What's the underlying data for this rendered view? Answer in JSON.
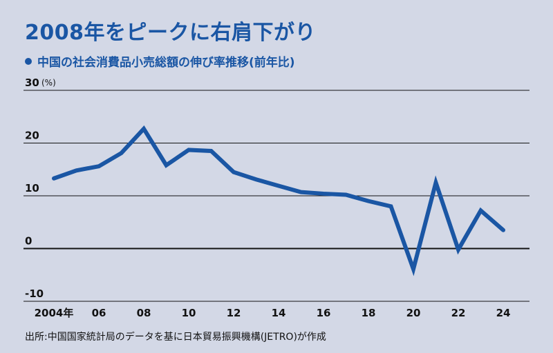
{
  "title": "2008年をピークに右肩下がり",
  "subtitle": "中国の社会消費品小売総額の伸び率推移(前年比)",
  "source": "出所:中国国家統計局のデータを基に日本貿易振興機構(JETRO)が作成",
  "colors": {
    "line": "#1a56a4",
    "title": "#1a56a4",
    "background": "#d3d8e6",
    "grid": "#111111"
  },
  "chart_data": {
    "type": "line",
    "unit": "(%)",
    "ylim": [
      -10,
      30
    ],
    "yticks": [
      30,
      20,
      10,
      0,
      -10
    ],
    "ytick_labels": [
      "30",
      "20",
      "10",
      "0",
      "-10"
    ],
    "grid": true,
    "xticks": [
      2004,
      2006,
      2008,
      2010,
      2012,
      2014,
      2016,
      2018,
      2020,
      2022,
      2024
    ],
    "xtick_labels": [
      "2004年",
      "06",
      "08",
      "10",
      "12",
      "14",
      "16",
      "18",
      "20",
      "22",
      "24"
    ],
    "x": [
      2004,
      2005,
      2006,
      2007,
      2008,
      2009,
      2010,
      2011,
      2012,
      2013,
      2014,
      2015,
      2016,
      2017,
      2018,
      2019,
      2020,
      2021,
      2022,
      2023,
      2024
    ],
    "series": [
      {
        "values": [
          13.3,
          14.8,
          15.6,
          18.1,
          22.7,
          15.8,
          18.7,
          18.5,
          14.5,
          13.1,
          11.9,
          10.7,
          10.4,
          10.2,
          9.0,
          8.0,
          -3.9,
          12.5,
          -0.2,
          7.2,
          3.5
        ]
      }
    ]
  }
}
